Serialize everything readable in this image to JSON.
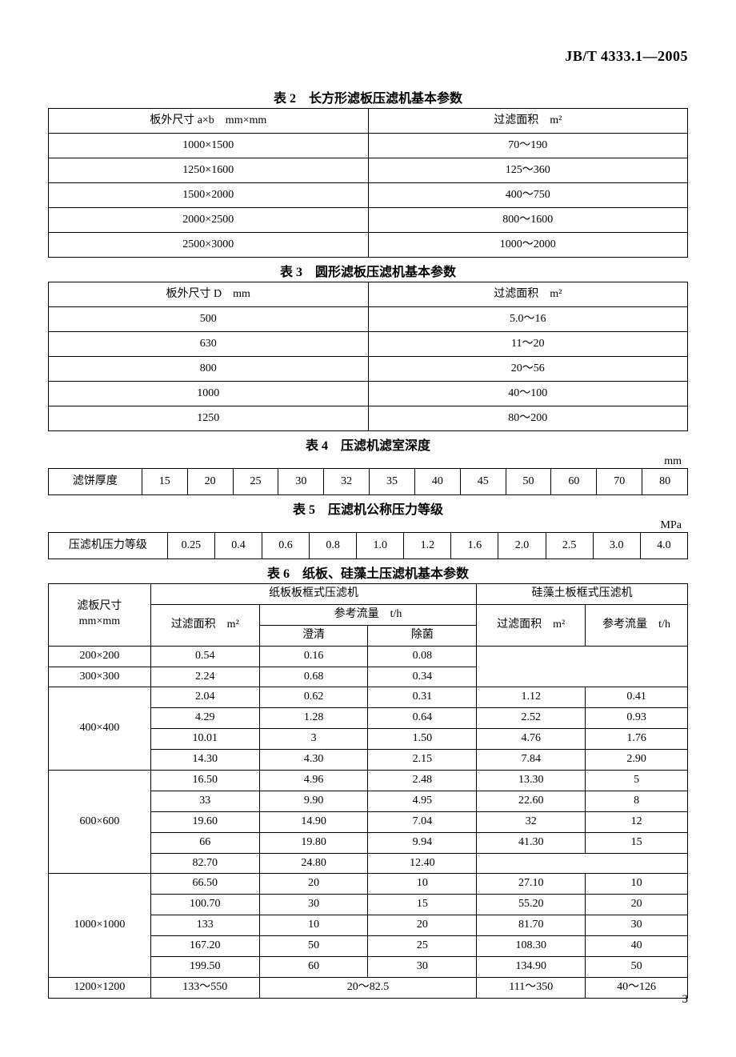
{
  "doc_id": "JB/T 4333.1—2005",
  "page_number": "3",
  "table2": {
    "title": "表 2　长方形滤板压滤机基本参数",
    "col1_header": "板外尺寸 a×b　mm×mm",
    "col2_header": "过滤面积　m²",
    "rows": [
      {
        "c1": "1000×1500",
        "c2": "70～190"
      },
      {
        "c1": "1250×1600",
        "c2": "125～360"
      },
      {
        "c1": "1500×2000",
        "c2": "400～750"
      },
      {
        "c1": "2000×2500",
        "c2": "800～1600"
      },
      {
        "c1": "2500×3000",
        "c2": "1000～2000"
      }
    ]
  },
  "table3": {
    "title": "表 3　圆形滤板压滤机基本参数",
    "col1_header": "板外尺寸 D　mm",
    "col2_header": "过滤面积　m²",
    "rows": [
      {
        "c1": "500",
        "c2": "5.0～16"
      },
      {
        "c1": "630",
        "c2": "11～20"
      },
      {
        "c1": "800",
        "c2": "20～56"
      },
      {
        "c1": "1000",
        "c2": "40～100"
      },
      {
        "c1": "1250",
        "c2": "80～200"
      }
    ]
  },
  "table4": {
    "title": "表 4　压滤机滤室深度",
    "unit": "mm",
    "label": "滤饼厚度",
    "values": [
      "15",
      "20",
      "25",
      "30",
      "32",
      "35",
      "40",
      "45",
      "50",
      "60",
      "70",
      "80"
    ]
  },
  "table5": {
    "title": "表 5　压滤机公称压力等级",
    "unit": "MPa",
    "label": "压滤机压力等级",
    "values": [
      "0.25",
      "0.4",
      "0.6",
      "0.8",
      "1.0",
      "1.2",
      "1.6",
      "2.0",
      "2.5",
      "3.0",
      "4.0"
    ]
  },
  "table6": {
    "title": "表 6　纸板、硅藻土压滤机基本参数",
    "hdr_size": "滤板尺寸\nmm×mm",
    "hdr_paper": "纸板板框式压滤机",
    "hdr_diat": "硅藻土板框式压滤机",
    "hdr_area": "过滤面积　m²",
    "hdr_flow": "参考流量　t/h",
    "hdr_clar": "澄清",
    "hdr_ster": "除菌",
    "groups": [
      {
        "size": "200×200",
        "rows": [
          {
            "a": "0.54",
            "c": "0.16",
            "s": "0.08",
            "da": "",
            "df": ""
          }
        ]
      },
      {
        "size": "300×300",
        "rows": [
          {
            "a": "2.24",
            "c": "0.68",
            "s": "0.34",
            "da": "",
            "df": ""
          }
        ]
      },
      {
        "size": "400×400",
        "rows": [
          {
            "a": "2.04",
            "c": "0.62",
            "s": "0.31",
            "da": "1.12",
            "df": "0.41"
          },
          {
            "a": "4.29",
            "c": "1.28",
            "s": "0.64",
            "da": "2.52",
            "df": "0.93"
          },
          {
            "a": "10.01",
            "c": "3",
            "s": "1.50",
            "da": "4.76",
            "df": "1.76"
          },
          {
            "a": "14.30",
            "c": "4.30",
            "s": "2.15",
            "da": "7.84",
            "df": "2.90"
          }
        ]
      },
      {
        "size": "600×600",
        "rows": [
          {
            "a": "16.50",
            "c": "4.96",
            "s": "2.48",
            "da": "13.30",
            "df": "5"
          },
          {
            "a": "33",
            "c": "9.90",
            "s": "4.95",
            "da": "22.60",
            "df": "8"
          },
          {
            "a": "19.60",
            "c": "14.90",
            "s": "7.04",
            "da": "32",
            "df": "12"
          },
          {
            "a": "66",
            "c": "19.80",
            "s": "9.94",
            "da": "41.30",
            "df": "15"
          },
          {
            "a": "82.70",
            "c": "24.80",
            "s": "12.40",
            "da": "",
            "df": ""
          }
        ]
      },
      {
        "size": "1000×1000",
        "rows": [
          {
            "a": "66.50",
            "c": "20",
            "s": "10",
            "da": "27.10",
            "df": "10"
          },
          {
            "a": "100.70",
            "c": "30",
            "s": "15",
            "da": "55.20",
            "df": "20"
          },
          {
            "a": "133",
            "c": "10",
            "s": "20",
            "da": "81.70",
            "df": "30"
          },
          {
            "a": "167.20",
            "c": "50",
            "s": "25",
            "da": "108.30",
            "df": "40"
          },
          {
            "a": "199.50",
            "c": "60",
            "s": "30",
            "da": "134.90",
            "df": "50"
          }
        ]
      },
      {
        "size": "1200×1200",
        "rows": [
          {
            "a": "133～550",
            "cs_merge": "20～82.5",
            "da": "111～350",
            "df": "40～126"
          }
        ]
      }
    ]
  },
  "style": {
    "font_body_pt": 14,
    "font_title_pt": 16,
    "border_color": "#000000",
    "background": "#ffffff",
    "text_color": "#000000"
  }
}
